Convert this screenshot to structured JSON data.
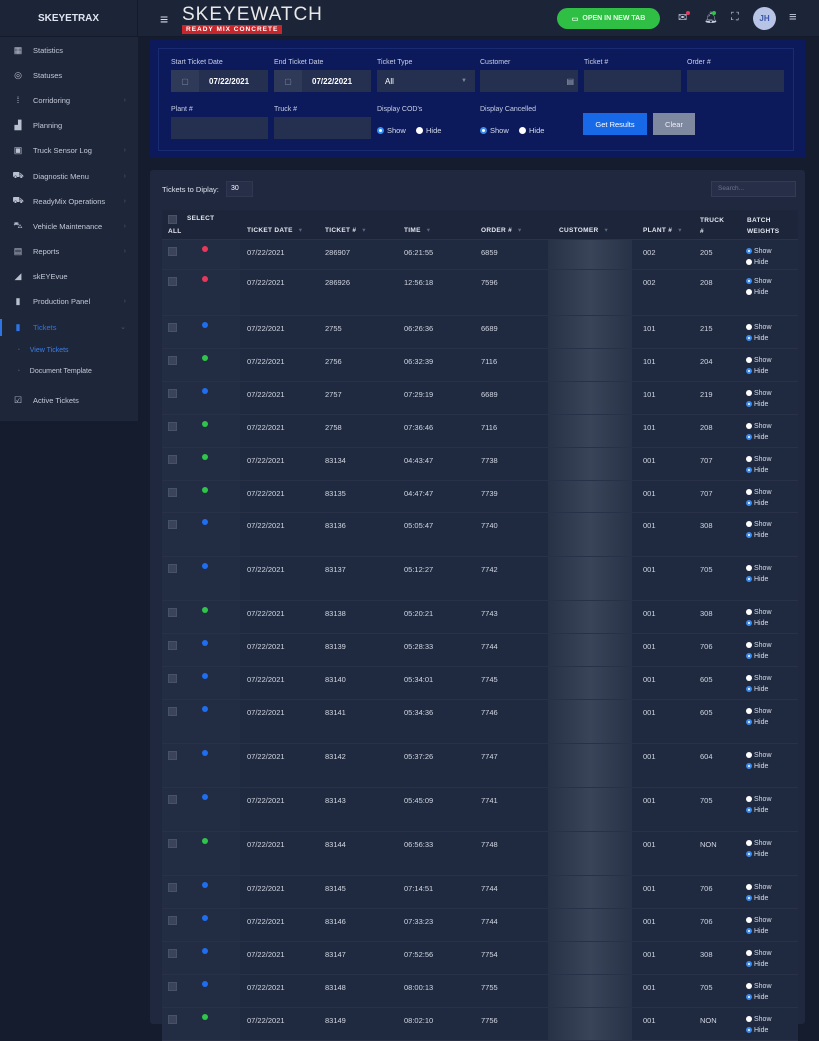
{
  "header": {
    "logo_left": "SKEYETRAX",
    "brand_title": "SKEYEWATCH",
    "brand_subtitle": "READY MIX CONCRETE",
    "open_tab_label": "OPEN IN NEW TAB",
    "avatar_initials": "JH"
  },
  "sidebar": {
    "items": [
      {
        "label": "Statistics",
        "icon": "dashboard-icon",
        "chevron": false
      },
      {
        "label": "Statuses",
        "icon": "target-icon",
        "chevron": false
      },
      {
        "label": "Corridoring",
        "icon": "route-icon",
        "chevron": true
      },
      {
        "label": "Planning",
        "icon": "chart-icon",
        "chevron": false
      },
      {
        "label": "Truck Sensor Log",
        "icon": "sensor-icon",
        "chevron": true
      },
      {
        "label": "Diagnostic Menu",
        "icon": "truck-diagnostic-icon",
        "chevron": true
      },
      {
        "label": "ReadyMix Operations",
        "icon": "mixer-truck-icon",
        "chevron": true
      },
      {
        "label": "Vehicle Maintenance",
        "icon": "vehicle-icon",
        "chevron": true
      },
      {
        "label": "Reports",
        "icon": "report-icon",
        "chevron": true
      },
      {
        "label": "skEYEvue",
        "icon": "camera-icon",
        "chevron": false
      },
      {
        "label": "Production Panel",
        "icon": "panel-icon",
        "chevron": true
      },
      {
        "label": "Tickets",
        "icon": "ticket-icon",
        "chevron": true,
        "active": true
      }
    ],
    "subitems": [
      {
        "label": "View Tickets",
        "active": true
      },
      {
        "label": "Document Template"
      }
    ],
    "after": {
      "label": "Active Tickets",
      "icon": "active-tickets-icon"
    }
  },
  "filters": {
    "start_date_label": "Start Ticket Date",
    "start_date": "07/22/2021",
    "end_date_label": "End Ticket Date",
    "end_date": "07/22/2021",
    "ticket_type_label": "Ticket Type",
    "ticket_type": "All",
    "customer_label": "Customer",
    "ticket_label": "Ticket #",
    "order_label": "Order #",
    "plant_label": "Plant #",
    "truck_label": "Truck #",
    "cod_label": "Display COD's",
    "cod_value": "Show",
    "cancelled_label": "Display Cancelled",
    "cancelled_value": "Show",
    "show": "Show",
    "hide": "Hide",
    "get_results": "Get Results",
    "clear": "Clear"
  },
  "table": {
    "display_label": "Tickets to Diplay:",
    "display_value": "30",
    "search_placeholder": "Search...",
    "columns": {
      "all": "ALL",
      "select": "SELECT",
      "ticket_date": "TICKET DATE",
      "ticket": "TICKET #",
      "time": "TIME",
      "order": "ORDER #",
      "customer": "CUSTOMER",
      "plant": "PLANT #",
      "truck": "TRUCK #",
      "batch": "BATCH WEIGHTS"
    },
    "status_colors": {
      "red": "#e8385a",
      "blue": "#1f6df0",
      "green": "#2fc44a"
    },
    "rows": [
      {
        "status": "red",
        "date": "07/22/2021",
        "ticket": "286907",
        "time": "06:21:55",
        "order": "6859",
        "plant": "002",
        "truck": "205",
        "batch": "Show"
      },
      {
        "status": "red",
        "date": "07/22/2021",
        "ticket": "286926",
        "time": "12:56:18",
        "order": "7596",
        "plant": "002",
        "truck": "208",
        "batch": "Show"
      },
      {
        "status": "blue",
        "date": "07/22/2021",
        "ticket": "2755",
        "time": "06:26:36",
        "order": "6689",
        "plant": "101",
        "truck": "215",
        "batch": "Hide"
      },
      {
        "status": "green",
        "date": "07/22/2021",
        "ticket": "2756",
        "time": "06:32:39",
        "order": "7116",
        "plant": "101",
        "truck": "204",
        "batch": "Hide"
      },
      {
        "status": "blue",
        "date": "07/22/2021",
        "ticket": "2757",
        "time": "07:29:19",
        "order": "6689",
        "plant": "101",
        "truck": "219",
        "batch": "Hide"
      },
      {
        "status": "green",
        "date": "07/22/2021",
        "ticket": "2758",
        "time": "07:36:46",
        "order": "7116",
        "plant": "101",
        "truck": "208",
        "batch": "Hide"
      },
      {
        "status": "green",
        "date": "07/22/2021",
        "ticket": "83134",
        "time": "04:43:47",
        "order": "7738",
        "plant": "001",
        "truck": "707",
        "batch": "Hide"
      },
      {
        "status": "green",
        "date": "07/22/2021",
        "ticket": "83135",
        "time": "04:47:47",
        "order": "7739",
        "plant": "001",
        "truck": "707",
        "batch": "Hide"
      },
      {
        "status": "blue",
        "date": "07/22/2021",
        "ticket": "83136",
        "time": "05:05:47",
        "order": "7740",
        "plant": "001",
        "truck": "308",
        "batch": "Hide"
      },
      {
        "status": "blue",
        "date": "07/22/2021",
        "ticket": "83137",
        "time": "05:12:27",
        "order": "7742",
        "plant": "001",
        "truck": "705",
        "batch": "Hide"
      },
      {
        "status": "green",
        "date": "07/22/2021",
        "ticket": "83138",
        "time": "05:20:21",
        "order": "7743",
        "plant": "001",
        "truck": "308",
        "batch": "Hide"
      },
      {
        "status": "blue",
        "date": "07/22/2021",
        "ticket": "83139",
        "time": "05:28:33",
        "order": "7744",
        "plant": "001",
        "truck": "706",
        "batch": "Hide"
      },
      {
        "status": "blue",
        "date": "07/22/2021",
        "ticket": "83140",
        "time": "05:34:01",
        "order": "7745",
        "plant": "001",
        "truck": "605",
        "batch": "Hide"
      },
      {
        "status": "blue",
        "date": "07/22/2021",
        "ticket": "83141",
        "time": "05:34:36",
        "order": "7746",
        "plant": "001",
        "truck": "605",
        "batch": "Hide"
      },
      {
        "status": "blue",
        "date": "07/22/2021",
        "ticket": "83142",
        "time": "05:37:26",
        "order": "7747",
        "plant": "001",
        "truck": "604",
        "batch": "Hide"
      },
      {
        "status": "blue",
        "date": "07/22/2021",
        "ticket": "83143",
        "time": "05:45:09",
        "order": "7741",
        "plant": "001",
        "truck": "705",
        "batch": "Hide"
      },
      {
        "status": "green",
        "date": "07/22/2021",
        "ticket": "83144",
        "time": "06:56:33",
        "order": "7748",
        "plant": "001",
        "truck": "NON",
        "batch": "Hide"
      },
      {
        "status": "blue",
        "date": "07/22/2021",
        "ticket": "83145",
        "time": "07:14:51",
        "order": "7744",
        "plant": "001",
        "truck": "706",
        "batch": "Hide"
      },
      {
        "status": "blue",
        "date": "07/22/2021",
        "ticket": "83146",
        "time": "07:33:23",
        "order": "7744",
        "plant": "001",
        "truck": "706",
        "batch": "Hide"
      },
      {
        "status": "blue",
        "date": "07/22/2021",
        "ticket": "83147",
        "time": "07:52:56",
        "order": "7754",
        "plant": "001",
        "truck": "308",
        "batch": "Hide"
      },
      {
        "status": "blue",
        "date": "07/22/2021",
        "ticket": "83148",
        "time": "08:00:13",
        "order": "7755",
        "plant": "001",
        "truck": "705",
        "batch": "Hide"
      },
      {
        "status": "green",
        "date": "07/22/2021",
        "ticket": "83149",
        "time": "08:02:10",
        "order": "7756",
        "plant": "001",
        "truck": "NON",
        "batch": "Hide"
      }
    ]
  }
}
